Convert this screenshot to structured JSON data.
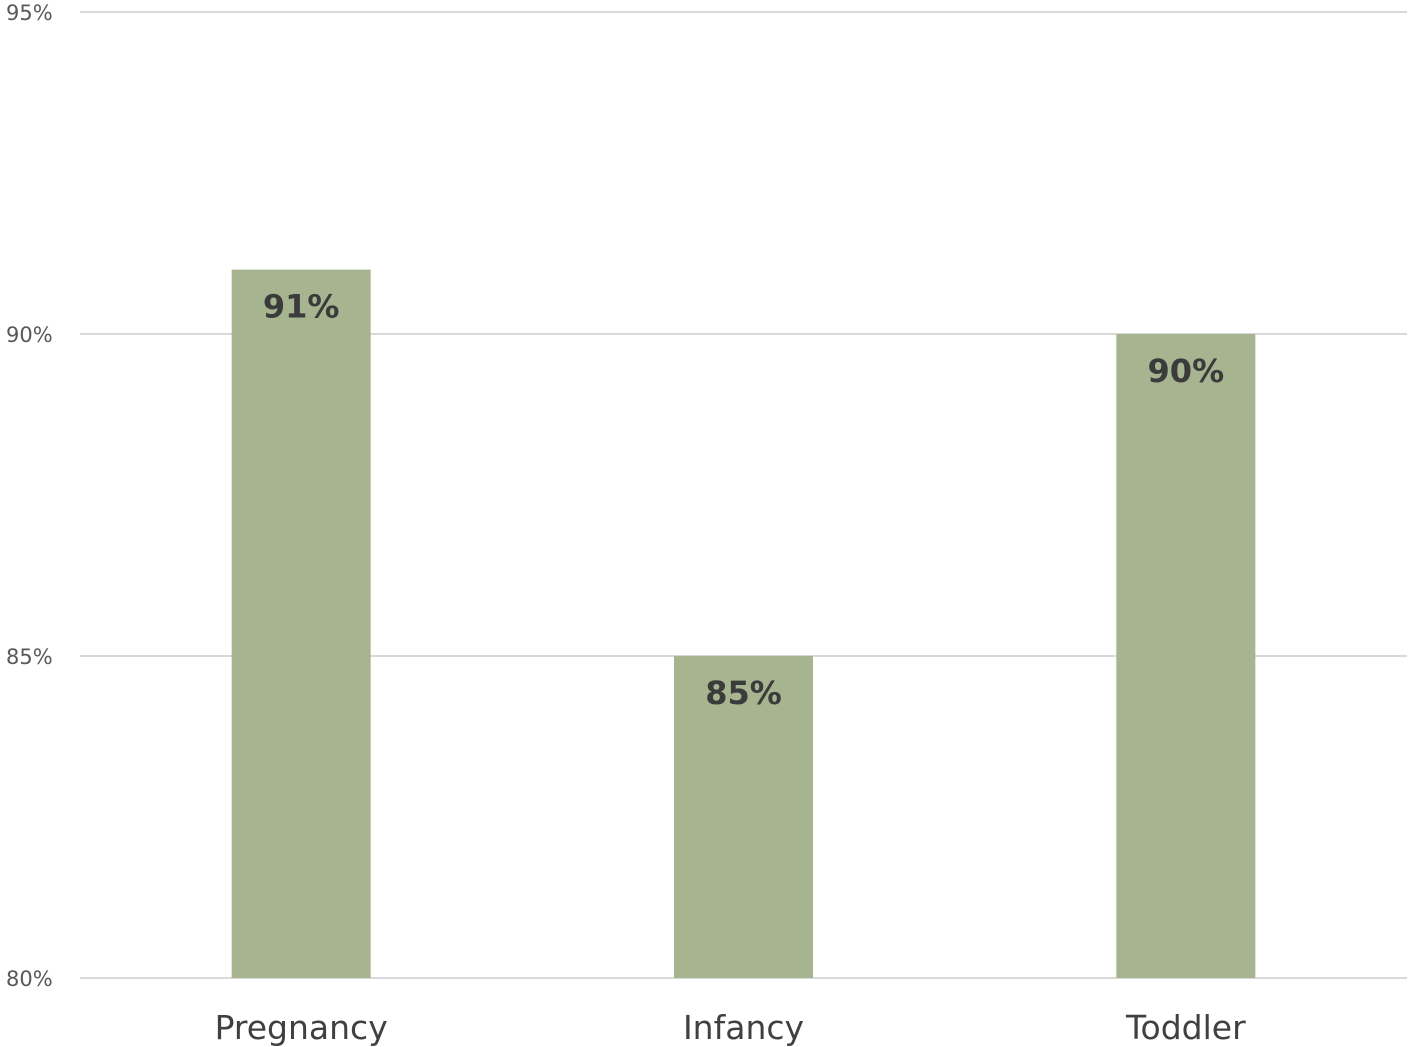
{
  "chart_data": {
    "type": "bar",
    "title": "",
    "xlabel": "",
    "ylabel": "",
    "categories": [
      "Pregnancy",
      "Infancy",
      "Toddler"
    ],
    "values": [
      91,
      85,
      90
    ],
    "data_labels": [
      "91%",
      "85%",
      "90%"
    ],
    "ylim": [
      80,
      95
    ],
    "yticks": [
      80,
      85,
      90,
      95
    ],
    "ytick_labels": [
      "80%",
      "85%",
      "90%",
      "95%"
    ],
    "grid": true,
    "legend": "none",
    "bar_color": "#a6b490"
  }
}
